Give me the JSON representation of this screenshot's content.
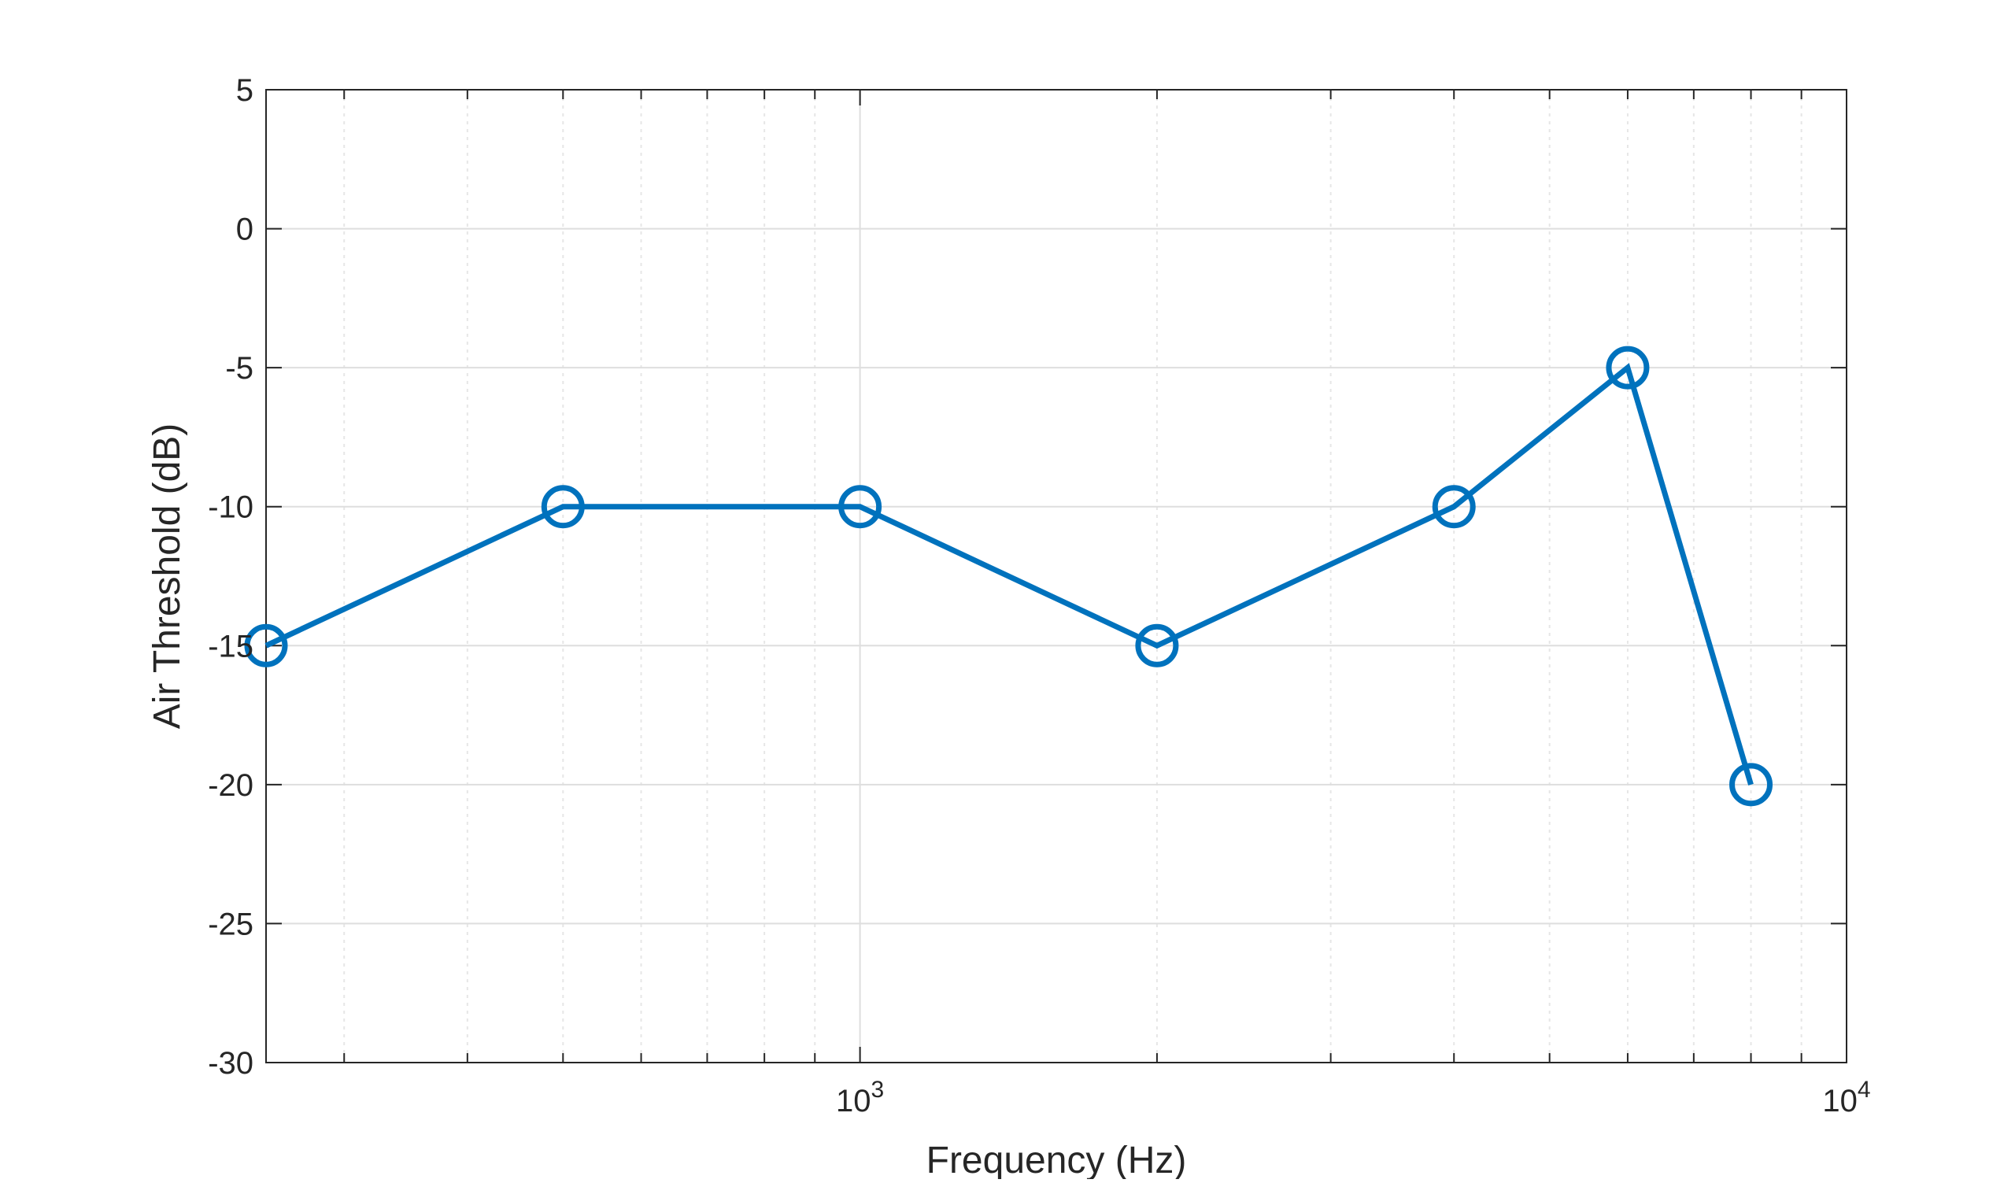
{
  "chart_data": {
    "type": "line",
    "xscale": "log",
    "xlabel": "Frequency (Hz)",
    "ylabel": "Air Threshold (dB)",
    "xlim": [
      250,
      10000
    ],
    "ylim": [
      -30,
      5
    ],
    "grid": true,
    "x_ticks": [
      {
        "value": 1000,
        "base": "10",
        "exp": "3"
      },
      {
        "value": 10000,
        "base": "10",
        "exp": "4"
      }
    ],
    "y_ticks": [
      {
        "value": 5,
        "label": "5"
      },
      {
        "value": 0,
        "label": "0"
      },
      {
        "value": -5,
        "label": "-5"
      },
      {
        "value": -10,
        "label": "-10"
      },
      {
        "value": -15,
        "label": "-15"
      },
      {
        "value": -20,
        "label": "-20"
      },
      {
        "value": -25,
        "label": "-25"
      },
      {
        "value": -30,
        "label": "-30"
      }
    ],
    "series": [
      {
        "color": "#0072BD",
        "marker": "circle",
        "x": [
          250,
          500,
          1000,
          2000,
          4000,
          6000,
          8000
        ],
        "y": [
          -15,
          -10,
          -10,
          -15,
          -10,
          -5,
          -20
        ]
      }
    ]
  }
}
